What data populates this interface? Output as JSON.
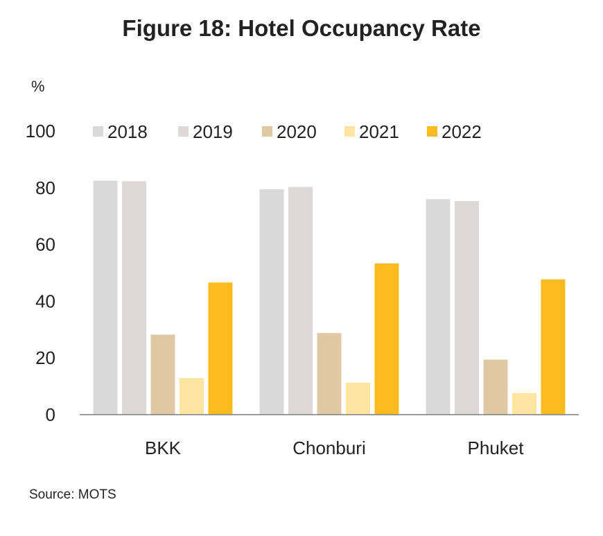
{
  "title": "Figure 18: Hotel Occupancy Rate",
  "unit_label": "%",
  "source": "Source: MOTS",
  "chart_data": {
    "type": "bar",
    "title": "Figure 18: Hotel Occupancy Rate",
    "ylabel": "%",
    "xlabel": "",
    "ylim": [
      0,
      100
    ],
    "yticks": [
      0,
      20,
      40,
      60,
      80,
      100
    ],
    "grid": false,
    "legend_position": "top",
    "categories": [
      "BKK",
      "Chonburi",
      "Phuket"
    ],
    "series": [
      {
        "name": "2018",
        "color": "#d9d9d9",
        "values": [
          82.5,
          79.5,
          76
        ]
      },
      {
        "name": "2019",
        "color": "#ded8d8",
        "values": [
          82.3,
          80.3,
          75.3
        ]
      },
      {
        "name": "2020",
        "color": "#dfc8a4",
        "values": [
          28.2,
          28.8,
          19.4
        ]
      },
      {
        "name": "2021",
        "color": "#fde5a1",
        "values": [
          12.9,
          11.3,
          7.6
        ]
      },
      {
        "name": "2022",
        "color": "#fdbb1f",
        "values": [
          46.6,
          53.3,
          47.7
        ]
      }
    ]
  }
}
